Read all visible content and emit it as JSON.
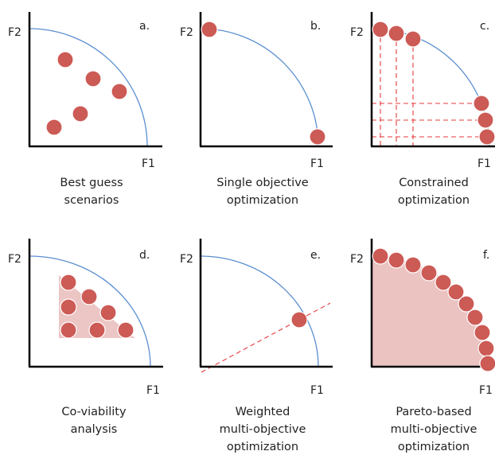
{
  "axis_labels": {
    "y": "F2",
    "x": "F1"
  },
  "panels": [
    {
      "letter": "a.",
      "caption": [
        "Best guess",
        "scenarios"
      ]
    },
    {
      "letter": "b.",
      "caption": [
        "Single objective",
        "optimization"
      ]
    },
    {
      "letter": "c.",
      "caption": [
        "Constrained",
        "optimization"
      ]
    },
    {
      "letter": "d.",
      "caption": [
        "Co-viability",
        "analysis"
      ]
    },
    {
      "letter": "e.",
      "caption": [
        "Weighted",
        "multi-objective",
        "optimization"
      ]
    },
    {
      "letter": "f.",
      "caption": [
        "Pareto-based",
        "multi-objective",
        "optimization"
      ]
    }
  ],
  "colors": {
    "point": "#cc5a55",
    "front": "#5b8fd0",
    "guide": "#e8393a",
    "region": "#ebc3c1"
  }
}
